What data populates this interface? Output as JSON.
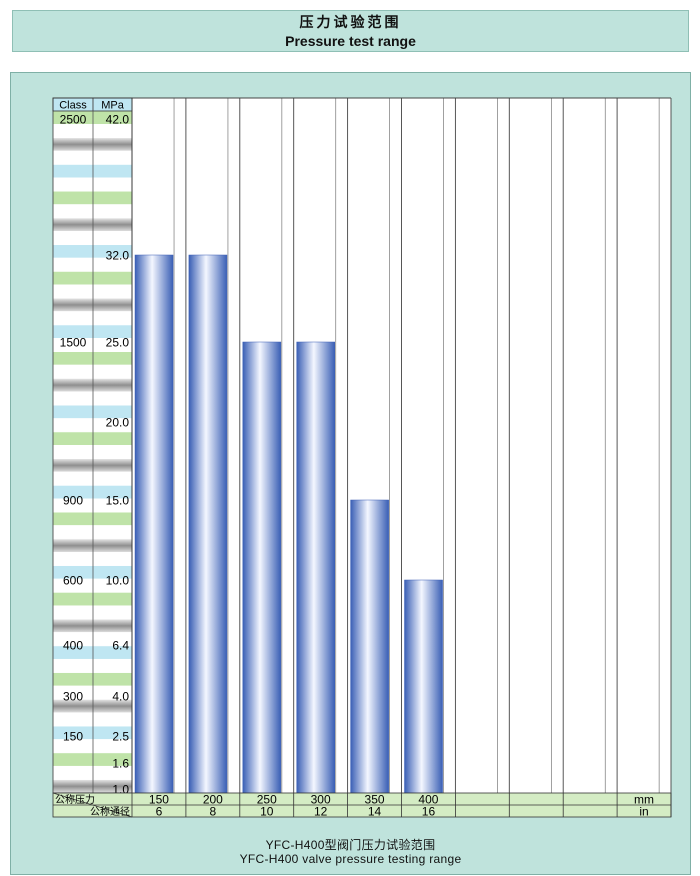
{
  "title": {
    "cn": "压力试验范围",
    "en": "Pressure test range"
  },
  "caption": {
    "cn": "YFC-H400型阀门压力试验范围",
    "en": "YFC-H400 valve pressure testing range"
  },
  "colors": {
    "panel": "#bfe3dc",
    "bar_light": "#f4f7ff",
    "bar_dark": "#3f63b8",
    "row_green": "#bfe3a8",
    "row_blue": "#bfe6f2",
    "row_gray": "#9a9a9a",
    "row_white": "#ffffff",
    "footer_green": "#d4ecc4"
  },
  "chart_data": {
    "type": "bar",
    "yaxis_headers": {
      "class": "Class",
      "mpa": "MPa"
    },
    "y_ticks": [
      {
        "class": "2500",
        "mpa": "42.0",
        "value": 42.0
      },
      {
        "class": "",
        "mpa": "32.0",
        "value": 32.0
      },
      {
        "class": "1500",
        "mpa": "25.0",
        "value": 25.0
      },
      {
        "class": "",
        "mpa": "20.0",
        "value": 20.0
      },
      {
        "class": "900",
        "mpa": "15.0",
        "value": 15.0
      },
      {
        "class": "600",
        "mpa": "10.0",
        "value": 10.0
      },
      {
        "class": "400",
        "mpa": "6.4",
        "value": 6.4
      },
      {
        "class": "300",
        "mpa": "4.0",
        "value": 4.0
      },
      {
        "class": "150",
        "mpa": "2.5",
        "value": 2.5
      },
      {
        "class": "",
        "mpa": "1.6",
        "value": 1.6
      },
      {
        "class": "",
        "mpa": "1.0",
        "value": 1.0
      }
    ],
    "categories_mm": [
      "150",
      "200",
      "250",
      "300",
      "350",
      "400",
      "",
      "",
      "",
      ""
    ],
    "categories_in": [
      "6",
      "8",
      "10",
      "12",
      "14",
      "16",
      "",
      "",
      "",
      ""
    ],
    "values": [
      32.0,
      32.0,
      25.0,
      25.0,
      15.0,
      10.0
    ],
    "footer_labels": {
      "pressure": "公称压力",
      "diameter": "公称通径",
      "unit_mm": "mm",
      "unit_in": "in"
    },
    "ylim": [
      0,
      42.0
    ]
  }
}
